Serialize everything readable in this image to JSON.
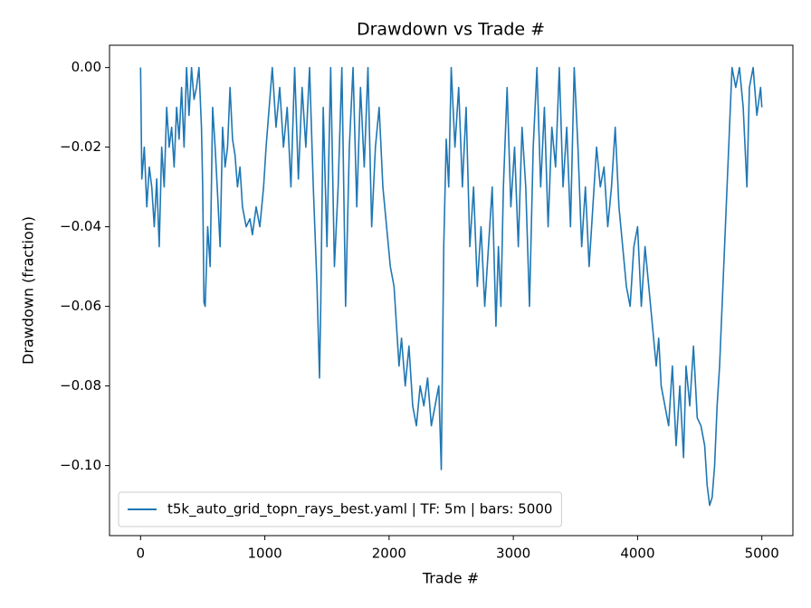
{
  "chart_data": {
    "type": "line",
    "title": "Drawdown vs Trade #",
    "x_label": "Trade #",
    "y_label": "Drawdown (fraction)",
    "x": [
      0,
      10,
      30,
      50,
      70,
      90,
      110,
      130,
      150,
      170,
      190,
      210,
      230,
      250,
      270,
      290,
      310,
      330,
      350,
      370,
      390,
      410,
      430,
      450,
      470,
      490,
      500,
      510,
      520,
      540,
      560,
      580,
      600,
      620,
      640,
      660,
      680,
      700,
      720,
      740,
      760,
      780,
      800,
      820,
      850,
      880,
      900,
      930,
      960,
      990,
      1010,
      1030,
      1060,
      1090,
      1120,
      1150,
      1180,
      1210,
      1240,
      1270,
      1300,
      1330,
      1360,
      1390,
      1420,
      1440,
      1450,
      1470,
      1500,
      1530,
      1560,
      1590,
      1620,
      1650,
      1680,
      1710,
      1740,
      1770,
      1800,
      1830,
      1860,
      1890,
      1920,
      1950,
      1980,
      2010,
      2040,
      2060,
      2080,
      2100,
      2130,
      2160,
      2190,
      2220,
      2250,
      2280,
      2310,
      2340,
      2370,
      2400,
      2420,
      2440,
      2460,
      2480,
      2500,
      2530,
      2560,
      2590,
      2620,
      2650,
      2680,
      2710,
      2740,
      2770,
      2800,
      2830,
      2860,
      2880,
      2900,
      2920,
      2950,
      2980,
      3010,
      3040,
      3070,
      3100,
      3130,
      3160,
      3190,
      3220,
      3250,
      3280,
      3310,
      3340,
      3370,
      3400,
      3430,
      3460,
      3490,
      3520,
      3550,
      3580,
      3610,
      3640,
      3670,
      3700,
      3730,
      3760,
      3790,
      3820,
      3850,
      3880,
      3910,
      3940,
      3970,
      4000,
      4030,
      4060,
      4090,
      4120,
      4150,
      4170,
      4190,
      4220,
      4250,
      4280,
      4310,
      4340,
      4370,
      4390,
      4420,
      4450,
      4480,
      4510,
      4540,
      4560,
      4580,
      4600,
      4620,
      4640,
      4660,
      4680,
      4700,
      4720,
      4740,
      4760,
      4790,
      4820,
      4850,
      4880,
      4900,
      4930,
      4960,
      4990,
      5000
    ],
    "series": [
      {
        "name": "t5k_auto_grid_topn_rays_best.yaml | TF: 5m | bars: 5000",
        "color": "#1f77b4",
        "values": [
          0,
          -0.028,
          -0.02,
          -0.035,
          -0.025,
          -0.03,
          -0.04,
          -0.028,
          -0.045,
          -0.02,
          -0.03,
          -0.01,
          -0.02,
          -0.015,
          -0.025,
          -0.01,
          -0.018,
          -0.005,
          -0.02,
          0,
          -0.012,
          0,
          -0.008,
          -0.005,
          0,
          -0.015,
          -0.03,
          -0.059,
          -0.06,
          -0.04,
          -0.05,
          -0.01,
          -0.02,
          -0.032,
          -0.045,
          -0.015,
          -0.025,
          -0.02,
          -0.005,
          -0.018,
          -0.022,
          -0.03,
          -0.025,
          -0.035,
          -0.04,
          -0.038,
          -0.042,
          -0.035,
          -0.04,
          -0.03,
          -0.02,
          -0.012,
          0,
          -0.015,
          -0.005,
          -0.02,
          -0.01,
          -0.03,
          0,
          -0.028,
          -0.005,
          -0.02,
          0,
          -0.03,
          -0.055,
          -0.078,
          -0.06,
          -0.01,
          -0.045,
          0,
          -0.05,
          -0.03,
          0,
          -0.06,
          -0.02,
          0,
          -0.035,
          -0.005,
          -0.025,
          0,
          -0.04,
          -0.02,
          -0.01,
          -0.03,
          -0.04,
          -0.05,
          -0.055,
          -0.065,
          -0.075,
          -0.068,
          -0.08,
          -0.07,
          -0.085,
          -0.09,
          -0.08,
          -0.085,
          -0.078,
          -0.09,
          -0.085,
          -0.08,
          -0.101,
          -0.045,
          -0.018,
          -0.03,
          0,
          -0.02,
          -0.005,
          -0.03,
          -0.01,
          -0.045,
          -0.03,
          -0.055,
          -0.04,
          -0.06,
          -0.045,
          -0.03,
          -0.065,
          -0.045,
          -0.06,
          -0.03,
          -0.005,
          -0.035,
          -0.02,
          -0.045,
          -0.015,
          -0.03,
          -0.06,
          -0.02,
          0,
          -0.03,
          -0.01,
          -0.04,
          -0.015,
          -0.025,
          0,
          -0.03,
          -0.015,
          -0.04,
          0,
          -0.02,
          -0.045,
          -0.03,
          -0.05,
          -0.035,
          -0.02,
          -0.03,
          -0.025,
          -0.04,
          -0.03,
          -0.015,
          -0.035,
          -0.045,
          -0.055,
          -0.06,
          -0.045,
          -0.04,
          -0.06,
          -0.045,
          -0.055,
          -0.065,
          -0.075,
          -0.068,
          -0.08,
          -0.085,
          -0.09,
          -0.075,
          -0.095,
          -0.08,
          -0.098,
          -0.075,
          -0.085,
          -0.07,
          -0.088,
          -0.09,
          -0.095,
          -0.105,
          -0.11,
          -0.108,
          -0.1,
          -0.085,
          -0.075,
          -0.06,
          -0.045,
          -0.03,
          -0.015,
          0,
          -0.005,
          0,
          -0.01,
          -0.03,
          -0.005,
          0,
          -0.012,
          -0.005,
          -0.01
        ]
      }
    ],
    "xlim": [
      -250,
      5250
    ],
    "xticks": [
      0,
      1000,
      2000,
      3000,
      4000,
      5000
    ],
    "ylim": [
      -0.1176,
      0.0056
    ],
    "yticks": [
      {
        "value": -0.1,
        "label": "−0.10"
      },
      {
        "value": -0.08,
        "label": "−0.08"
      },
      {
        "value": -0.06,
        "label": "−0.06"
      },
      {
        "value": -0.04,
        "label": "−0.04"
      },
      {
        "value": -0.02,
        "label": "−0.02"
      },
      {
        "value": 0,
        "label": "0.00"
      }
    ],
    "grid": false,
    "legend": "lower left"
  }
}
